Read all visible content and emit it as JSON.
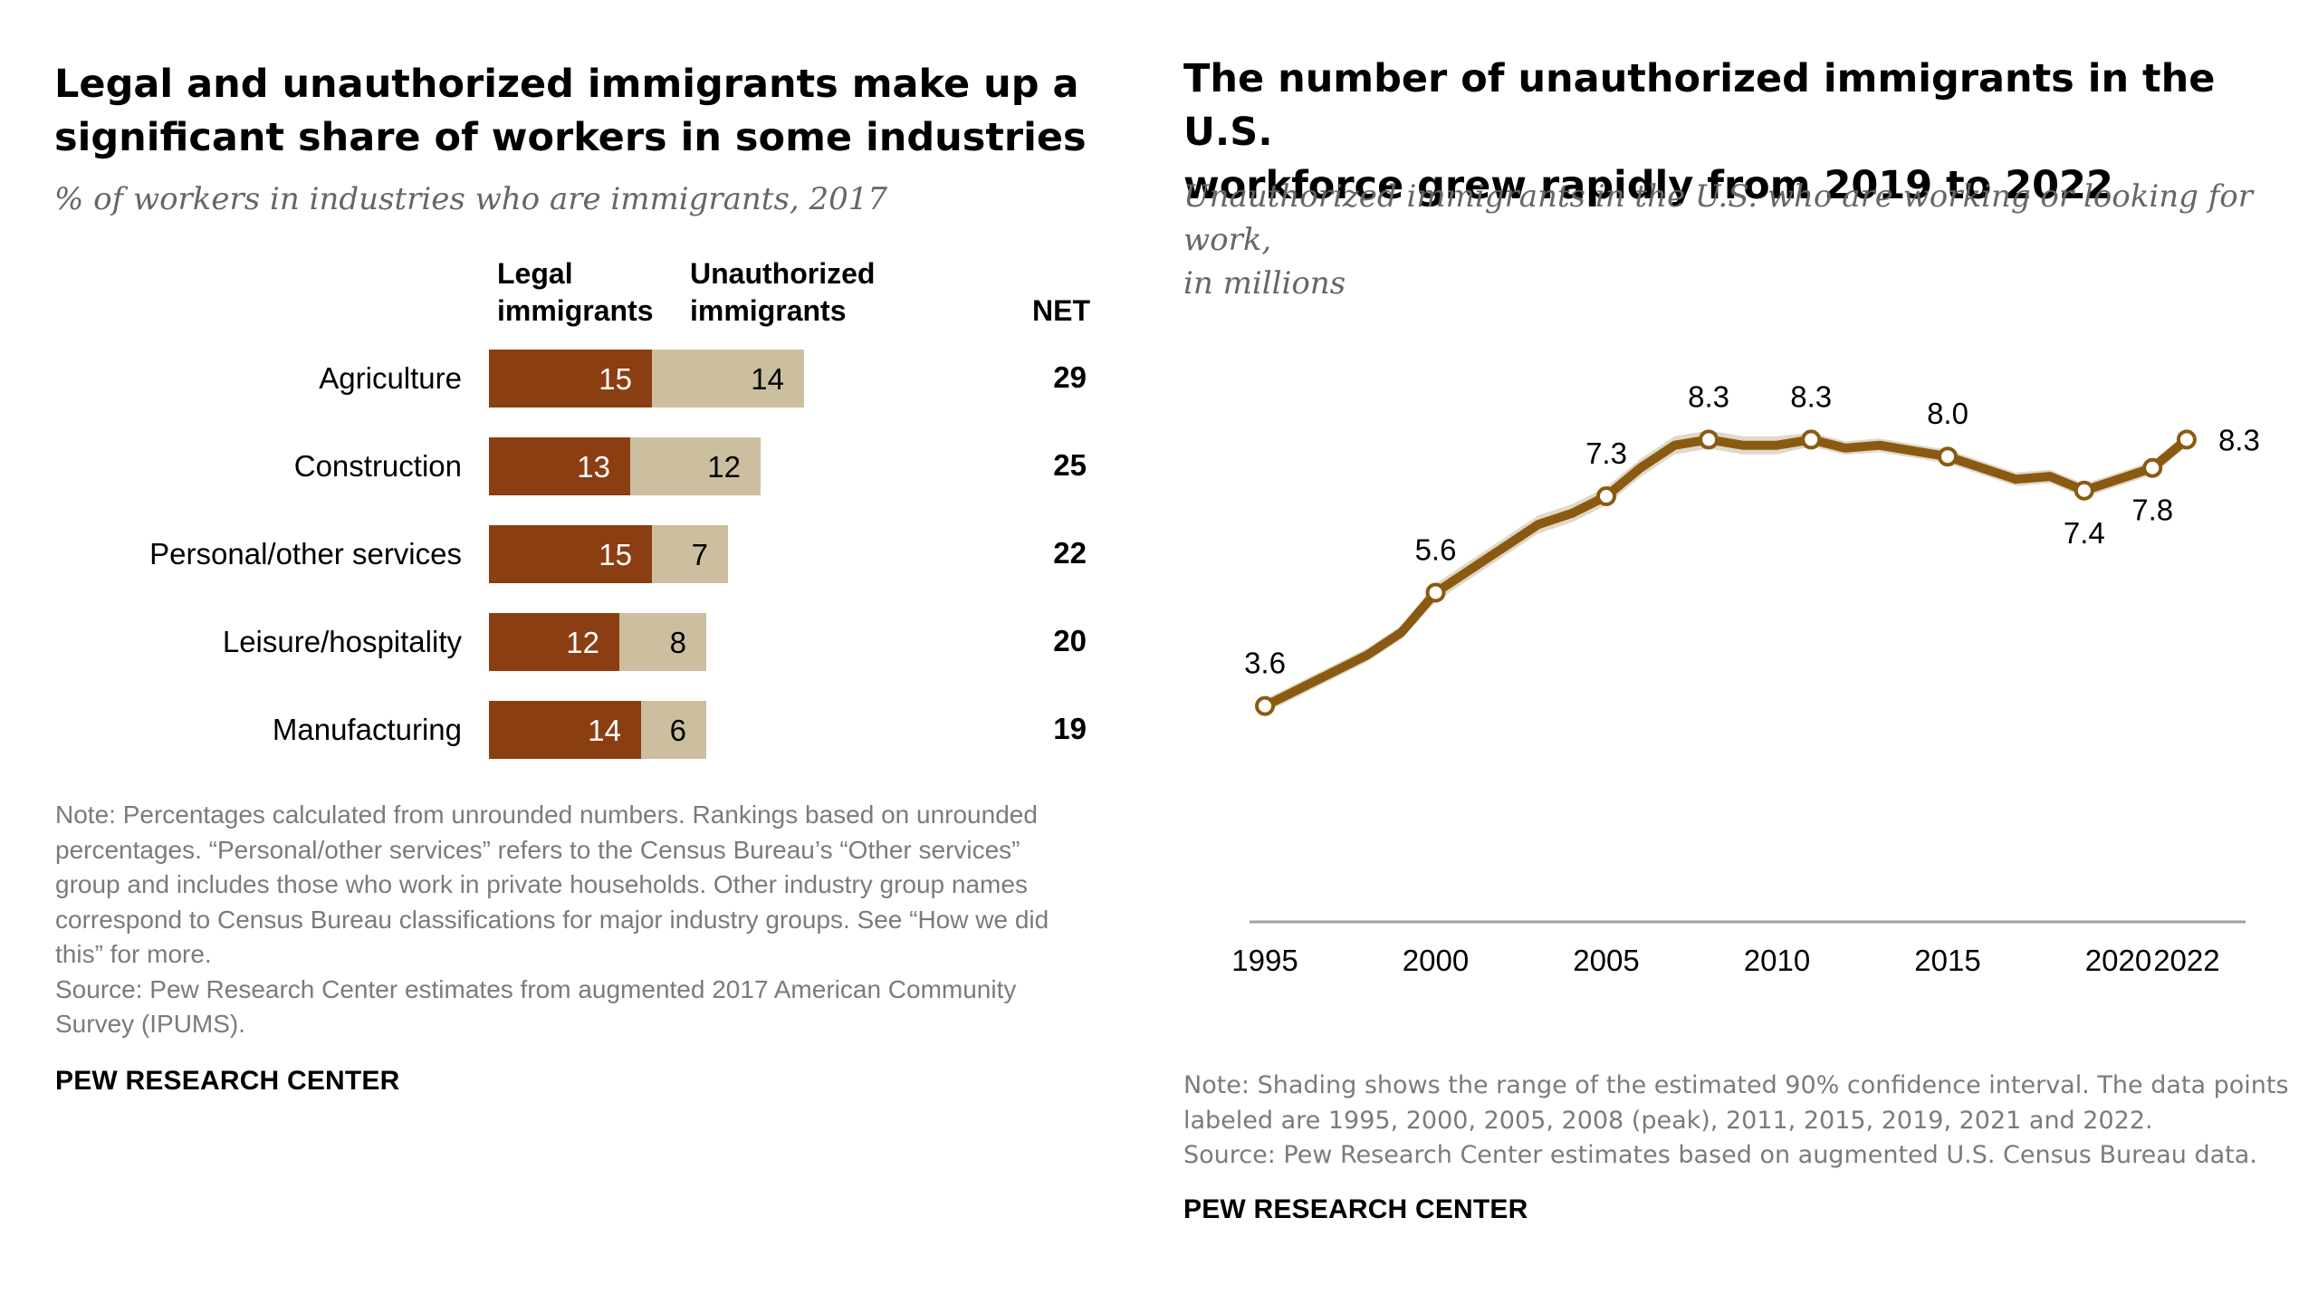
{
  "left_chart": {
    "title_line1": "Legal and unauthorized immigrants make up a",
    "title_line2": "significant share of workers in some industries",
    "subtitle": "% of workers in industries who are immigrants, 2017",
    "column_headers": {
      "legal_line1": "Legal",
      "legal_line2": "immigrants",
      "unauthorized_line1": "Unauthorized",
      "unauthorized_line2": "immigrants",
      "net": "NET"
    },
    "note_lines": [
      "Note: Percentages calculated from unrounded numbers. Rankings based on unrounded",
      "percentages. “Personal/other services” refers to the Census Bureau’s “Other services”",
      "group and includes those who work in private households. Other industry group names",
      "correspond to Census Bureau classifications for major industry groups. See “How we did",
      "this” for more.",
      "Source: Pew Research Center estimates from augmented 2017 American Community",
      "Survey (IPUMS)."
    ],
    "brand": "PEW RESEARCH CENTER"
  },
  "right_chart": {
    "title_line1": "The number of unauthorized immigrants in the U.S.",
    "title_line2": "workforce grew rapidly from 2019 to 2022",
    "subtitle_line1": "Unauthorized immigrants in the U.S. who are working or looking for work,",
    "subtitle_line2": "in millions",
    "note_lines": [
      "Note: Shading shows the range of the estimated 90% confidence interval. The data points",
      "labeled are 1995, 2000, 2005, 2008 (peak), 2011, 2015, 2019, 2021 and 2022.",
      "Source: Pew Research Center estimates based on augmented U.S. Census Bureau data."
    ],
    "brand": "PEW RESEARCH CENTER"
  },
  "chart_data": [
    {
      "type": "bar",
      "stacked": true,
      "orientation": "horizontal",
      "title": "Legal and unauthorized immigrants make up a significant share of workers in some industries",
      "subtitle": "% of workers in industries who are immigrants, 2017",
      "categories": [
        "Agriculture",
        "Construction",
        "Personal/other services",
        "Leisure/hospitality",
        "Manufacturing"
      ],
      "series": [
        {
          "name": "Legal immigrants",
          "values": [
            15,
            13,
            15,
            12,
            14
          ]
        },
        {
          "name": "Unauthorized immigrants",
          "values": [
            14,
            12,
            7,
            8,
            6
          ]
        }
      ],
      "net": [
        29,
        25,
        22,
        20,
        19
      ],
      "net_label": "NET",
      "colors": {
        "legal": "#8b3e12",
        "unauthorized": "#cbbf9f"
      },
      "grid": false
    },
    {
      "type": "line",
      "title": "The number of unauthorized immigrants in the U.S. workforce grew rapidly from 2019 to 2022",
      "subtitle": "Unauthorized immigrants in the U.S. who are working or looking for work, in millions",
      "x": [
        1995,
        1996,
        1997,
        1998,
        1999,
        2000,
        2001,
        2002,
        2003,
        2004,
        2005,
        2006,
        2007,
        2008,
        2009,
        2010,
        2011,
        2012,
        2013,
        2014,
        2015,
        2016,
        2017,
        2018,
        2019,
        2020,
        2021,
        2022
      ],
      "values": [
        3.6,
        3.9,
        4.2,
        4.5,
        4.9,
        5.6,
        6.0,
        6.4,
        6.8,
        7.0,
        7.3,
        7.8,
        8.2,
        8.3,
        8.2,
        8.2,
        8.3,
        8.15,
        8.2,
        8.1,
        8.0,
        7.8,
        7.6,
        7.65,
        7.4,
        7.6,
        7.8,
        8.3
      ],
      "marked_points": [
        {
          "x": 1995,
          "y": 3.6,
          "label": "3.6"
        },
        {
          "x": 2000,
          "y": 5.6,
          "label": "5.6"
        },
        {
          "x": 2005,
          "y": 7.3,
          "label": "7.3"
        },
        {
          "x": 2008,
          "y": 8.3,
          "label": "8.3"
        },
        {
          "x": 2011,
          "y": 8.3,
          "label": "8.3"
        },
        {
          "x": 2015,
          "y": 8.0,
          "label": "8.0"
        },
        {
          "x": 2019,
          "y": 7.4,
          "label": "7.4"
        },
        {
          "x": 2021,
          "y": 7.8,
          "label": "7.8"
        },
        {
          "x": 2022,
          "y": 8.3,
          "label": "8.3"
        }
      ],
      "x_ticks": [
        1995,
        2000,
        2005,
        2010,
        2015,
        2020,
        2022
      ],
      "ylim": [
        0,
        9.5
      ],
      "y_axis_shown": false,
      "confidence_interval_shaded": true,
      "colors": {
        "line": "#8b5a12",
        "ci": "#e0d8c8",
        "axis": "#a0a0a0"
      },
      "grid": false
    }
  ]
}
